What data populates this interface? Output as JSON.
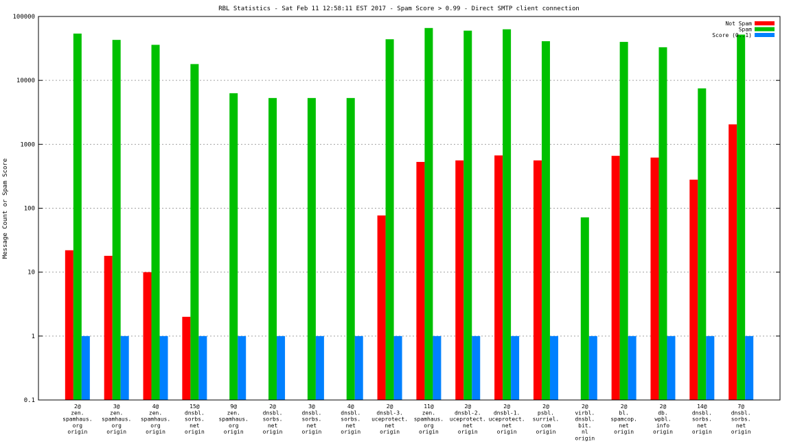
{
  "chart_data": {
    "type": "bar",
    "title": "RBL Statistics - Sat Feb 11 12:58:11 EST 2017 - Spam Score > 0.99 - Direct SMTP client connection",
    "ylabel": "Message Count or Spam Score",
    "xlabel": "",
    "yscale": "log",
    "ylim": [
      0.1,
      100000
    ],
    "yticks": [
      "0.1",
      "1",
      "10",
      "100",
      "1000",
      "10000",
      "100000"
    ],
    "grid": true,
    "legend_position": "top-right",
    "categories": [
      [
        "2@",
        "zen.",
        "spamhaus.",
        "org",
        "origin"
      ],
      [
        "3@",
        "zen.",
        "spamhaus.",
        "org",
        "origin"
      ],
      [
        "4@",
        "zen.",
        "spamhaus.",
        "org",
        "origin"
      ],
      [
        "15@",
        "dnsbl.",
        "sorbs.",
        "net",
        "origin"
      ],
      [
        "9@",
        "zen.",
        "spamhaus.",
        "org",
        "origin"
      ],
      [
        "2@",
        "dnsbl.",
        "sorbs.",
        "net",
        "origin"
      ],
      [
        "3@",
        "dnsbl.",
        "sorbs.",
        "net",
        "origin"
      ],
      [
        "4@",
        "dnsbl.",
        "sorbs.",
        "net",
        "origin"
      ],
      [
        "2@",
        "dnsbl-3.",
        "uceprotect.",
        "net",
        "origin"
      ],
      [
        "11@",
        "zen.",
        "spamhaus.",
        "org",
        "origin"
      ],
      [
        "2@",
        "dnsbl-2.",
        "uceprotect.",
        "net",
        "origin"
      ],
      [
        "2@",
        "dnsbl-1.",
        "uceprotect.",
        "net",
        "origin"
      ],
      [
        "2@",
        "psbl.",
        "surriel.",
        "com",
        "origin"
      ],
      [
        "2@",
        "virbl.",
        "dnsbl.",
        "bit.",
        "nl",
        "origin"
      ],
      [
        "2@",
        "bl.",
        "spamcop.",
        "net",
        "origin"
      ],
      [
        "2@",
        "db.",
        "wpbl.",
        "info",
        "origin"
      ],
      [
        "14@",
        "dnsbl.",
        "sorbs.",
        "net",
        "origin"
      ],
      [
        "7@",
        "dnsbl.",
        "sorbs.",
        "net",
        "origin"
      ]
    ],
    "series": [
      {
        "name": "Not Spam",
        "color": "#ff0000",
        "values": [
          22,
          18,
          10,
          2,
          0,
          0,
          0,
          0,
          77,
          530,
          560,
          670,
          560,
          0,
          660,
          620,
          280,
          2050
        ]
      },
      {
        "name": "Spam",
        "color": "#00c000",
        "values": [
          54000,
          43000,
          36000,
          18000,
          6300,
          5300,
          5300,
          5300,
          44000,
          66000,
          60000,
          63000,
          41000,
          72,
          40000,
          33000,
          7500,
          52000
        ]
      },
      {
        "name": "Score (0..1)",
        "color": "#0080ff",
        "values": [
          1,
          1,
          1,
          1,
          1,
          1,
          1,
          1,
          1,
          1,
          1,
          1,
          1,
          1,
          1,
          1,
          1,
          1
        ]
      }
    ]
  }
}
